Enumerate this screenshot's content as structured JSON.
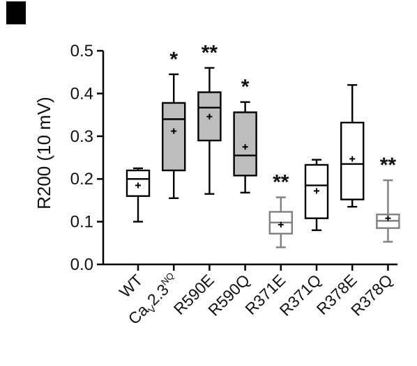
{
  "chart_data": {
    "type": "box",
    "ylabel": "R200 (10 mV)",
    "ylim": [
      0.0,
      0.5
    ],
    "yticks": [
      "0.0",
      "0.1",
      "0.2",
      "0.3",
      "0.4",
      "0.5"
    ],
    "grid": false,
    "categories": [
      {
        "label": "WT",
        "sub": "",
        "after": ""
      },
      {
        "label": "Ca",
        "sub": "V",
        "after": "2.3",
        "sup": "NQ"
      },
      {
        "label": "R590E",
        "sub": "",
        "after": ""
      },
      {
        "label": "R590Q",
        "sub": "",
        "after": ""
      },
      {
        "label": "R371E",
        "sub": "",
        "after": ""
      },
      {
        "label": "R371Q",
        "sub": "",
        "after": ""
      },
      {
        "label": "R378E",
        "sub": "",
        "after": ""
      },
      {
        "label": "R378Q",
        "sub": "",
        "after": ""
      }
    ],
    "boxes": [
      {
        "whisker_low": 0.1,
        "q1": 0.16,
        "median": 0.2,
        "q3": 0.22,
        "whisker_high": 0.225,
        "mean": 0.185,
        "fill": "#ffffff",
        "stroke": "#000000",
        "significance": ""
      },
      {
        "whisker_low": 0.155,
        "q1": 0.22,
        "median": 0.34,
        "q3": 0.378,
        "whisker_high": 0.445,
        "mean": 0.312,
        "fill": "#bdbdbd",
        "stroke": "#000000",
        "significance": "*"
      },
      {
        "whisker_low": 0.165,
        "q1": 0.29,
        "median": 0.367,
        "q3": 0.403,
        "whisker_high": 0.46,
        "mean": 0.346,
        "fill": "#bdbdbd",
        "stroke": "#000000",
        "significance": "**"
      },
      {
        "whisker_low": 0.168,
        "q1": 0.208,
        "median": 0.255,
        "q3": 0.356,
        "whisker_high": 0.38,
        "mean": 0.275,
        "fill": "#bdbdbd",
        "stroke": "#000000",
        "significance": "*"
      },
      {
        "whisker_low": 0.04,
        "q1": 0.072,
        "median": 0.098,
        "q3": 0.123,
        "whisker_high": 0.157,
        "mean": 0.093,
        "fill": "#ffffff",
        "stroke": "#808080",
        "significance": "**"
      },
      {
        "whisker_low": 0.08,
        "q1": 0.108,
        "median": 0.185,
        "q3": 0.233,
        "whisker_high": 0.245,
        "mean": 0.172,
        "fill": "#ffffff",
        "stroke": "#000000",
        "significance": ""
      },
      {
        "whisker_low": 0.135,
        "q1": 0.152,
        "median": 0.235,
        "q3": 0.332,
        "whisker_high": 0.42,
        "mean": 0.247,
        "fill": "#ffffff",
        "stroke": "#000000",
        "significance": ""
      },
      {
        "whisker_low": 0.053,
        "q1": 0.085,
        "median": 0.102,
        "q3": 0.117,
        "whisker_high": 0.197,
        "mean": 0.108,
        "fill": "#ffffff",
        "stroke": "#808080",
        "significance": "**"
      }
    ]
  }
}
